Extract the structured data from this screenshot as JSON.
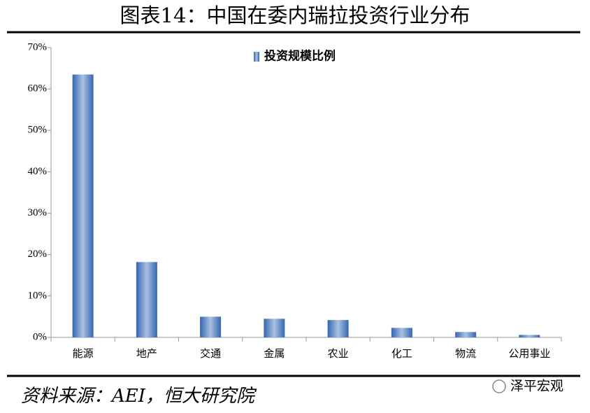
{
  "chart_data": {
    "type": "bar",
    "title": "图表14：中国在委内瑞拉投资行业分布",
    "categories": [
      "能源",
      "地产",
      "交通",
      "金属",
      "农业",
      "化工",
      "物流",
      "公用事业"
    ],
    "series": [
      {
        "name": "投资规模比例",
        "color": "#3566b0",
        "values": [
          63.5,
          18.2,
          5,
          4.5,
          4.2,
          2.3,
          1.3,
          0.6
        ]
      }
    ],
    "ylim": [
      0,
      70
    ],
    "yticks": [
      {
        "value": 0,
        "label": "0%"
      },
      {
        "value": 10,
        "label": "10%"
      },
      {
        "value": 20,
        "label": "20%"
      },
      {
        "value": 30,
        "label": "30%"
      },
      {
        "value": 40,
        "label": "40%"
      },
      {
        "value": 50,
        "label": "50%"
      },
      {
        "value": 60,
        "label": "60%"
      },
      {
        "value": 70,
        "label": "70%"
      }
    ],
    "grid": false,
    "legend": "top",
    "source": "资料来源：AEI，恒大研究院",
    "watermark": "泽平宏观"
  }
}
